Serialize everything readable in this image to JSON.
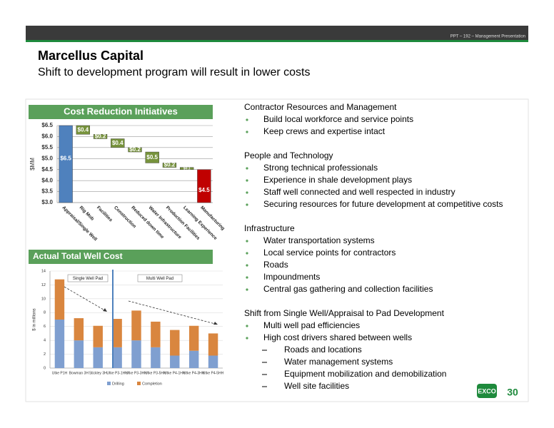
{
  "header": {
    "reference": "PPT – 192 – Management Presentation",
    "title": "Marcellus Capital",
    "subtitle": "Shift to development program will result in lower costs"
  },
  "chart_data": [
    {
      "type": "waterfall",
      "title": "Cost Reduction Initiatives",
      "y_label": "$MM",
      "categories": [
        "Appraisal/Single Well",
        "Rig Mob",
        "Facilities",
        "Construction",
        "Reduced down time",
        "Water Infrastructure",
        "Production Facilities",
        "Learning Experience",
        "Manufacturing"
      ],
      "values": [
        6.5,
        0.4,
        0.2,
        0.4,
        0.2,
        0.5,
        0.2,
        0.1,
        4.5
      ],
      "value_labels": [
        "$6.5",
        "$0.4",
        "$0.2",
        "$0.4",
        "$0.2",
        "$0.5",
        "$0.2",
        "$0.1",
        "$4.5"
      ],
      "measure": [
        "total",
        "decrease",
        "decrease",
        "decrease",
        "decrease",
        "decrease",
        "decrease",
        "decrease",
        "total"
      ],
      "colors": {
        "start": "#4f81bd",
        "decrease": "#77933c",
        "end": "#c00000"
      },
      "ylim": [
        3.0,
        6.5
      ],
      "yticks": [
        {
          "value": 3.0,
          "label": "$3.0"
        },
        {
          "value": 3.5,
          "label": "$3.5"
        },
        {
          "value": 4.0,
          "label": "$4.0"
        },
        {
          "value": 4.5,
          "label": "$4.5"
        },
        {
          "value": 5.0,
          "label": "$5.0"
        },
        {
          "value": 5.5,
          "label": "$5.5"
        },
        {
          "value": 6.0,
          "label": "$6.0"
        },
        {
          "value": 6.5,
          "label": "$6.5"
        }
      ],
      "grid": true
    },
    {
      "type": "stacked_bar",
      "title": "Actual Total Well Cost",
      "y_label": "$ in millions",
      "categories": [
        "Utke P1H",
        "Bowman 3H",
        "Stickley 3H",
        "Utke P3-1HH",
        "Utke P3-3HH",
        "Utke P3-5HH",
        "Utke P4-1HH",
        "Utke P4-3HH",
        "Utke P4-5HH"
      ],
      "series": [
        {
          "name": "Drilling",
          "color": "#7f9fd0",
          "values": [
            7.0,
            4.0,
            3.0,
            3.0,
            4.0,
            3.0,
            1.8,
            2.5,
            1.8
          ]
        },
        {
          "name": "Completion",
          "color": "#d9863f",
          "values": [
            5.8,
            3.2,
            3.1,
            4.1,
            4.3,
            3.7,
            3.7,
            3.6,
            3.2
          ]
        }
      ],
      "annotations": [
        "Single Well Pad",
        "Multi Well Pad"
      ],
      "ylim": [
        0,
        14
      ],
      "yticks": [
        0,
        2,
        4,
        6,
        8,
        10,
        12,
        14
      ],
      "grid": true
    }
  ],
  "sections": [
    {
      "heading": "Contractor Resources and Management",
      "items": [
        {
          "text": "Build local workforce and service points"
        },
        {
          "text": "Keep crews and expertise intact"
        }
      ]
    },
    {
      "heading": "People and Technology",
      "items": [
        {
          "text": "Strong technical professionals"
        },
        {
          "text": "Experience in shale development plays"
        },
        {
          "text": "Staff well connected and well respected in industry"
        },
        {
          "text": "Securing resources for future development at competitive costs"
        }
      ]
    },
    {
      "heading": "Infrastructure",
      "items": [
        {
          "text": "Water transportation systems"
        },
        {
          "text": "Local service points for contractors"
        },
        {
          "text": "Roads"
        },
        {
          "text": "Impoundments"
        },
        {
          "text": "Central gas gathering and collection facilities"
        }
      ]
    },
    {
      "heading": "Shift from Single Well/Appraisal to Pad Development",
      "items": [
        {
          "text": "Multi well pad efficiencies"
        },
        {
          "text": "High cost drivers shared between wells",
          "subitems": [
            "Roads and locations",
            "Water management systems",
            "Equipment mobilization and demobilization",
            "Well site facilities"
          ]
        }
      ]
    }
  ],
  "footer": {
    "logo": "EXCO",
    "page_number": "30"
  }
}
